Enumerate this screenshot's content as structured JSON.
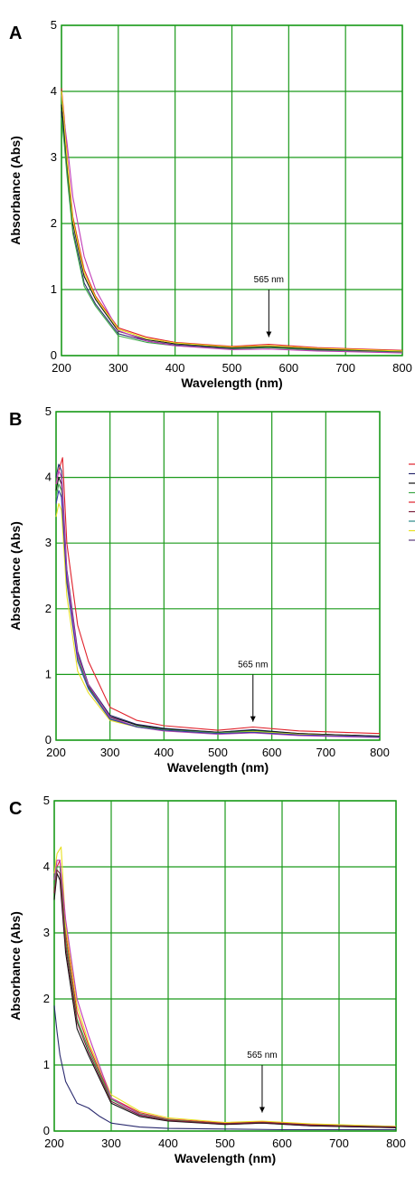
{
  "colors": {
    "grid": "#1a9a1a",
    "red": "#e0202a",
    "navy": "#2a2a6e",
    "black": "#111111",
    "green": "#3aa845",
    "magenta": "#c03ab8",
    "maroon": "#7a1f3a",
    "teal": "#2a8a8a",
    "yellow": "#e8e020",
    "purple": "#5a3a7a",
    "blue": "#3a3aa8"
  },
  "chart_data": [
    {
      "type": "line",
      "panel": "A",
      "xlabel": "Wavelength (nm)",
      "ylabel": "Absorbance (Abs)",
      "xlim": [
        200,
        800
      ],
      "ylim": [
        0,
        5
      ],
      "x_ticks": [
        "200",
        "300",
        "400",
        "500",
        "600",
        "700",
        "800"
      ],
      "y_ticks": [
        "0",
        "1",
        "2",
        "3",
        "4",
        "5"
      ],
      "grid": true,
      "annotation": {
        "text": "565 nm",
        "x": 565
      },
      "series": [
        {
          "color": "red",
          "x": [
            200,
            205,
            210,
            220,
            240,
            260,
            300,
            350,
            400,
            500,
            565,
            650,
            800
          ],
          "y": [
            4.05,
            3.6,
            3.0,
            2.1,
            1.3,
            0.9,
            0.42,
            0.28,
            0.2,
            0.14,
            0.17,
            0.12,
            0.08
          ]
        },
        {
          "color": "navy",
          "x": [
            200,
            205,
            210,
            220,
            240,
            260,
            300,
            350,
            400,
            500,
            565,
            650,
            800
          ],
          "y": [
            3.7,
            3.3,
            2.8,
            1.9,
            1.1,
            0.78,
            0.33,
            0.22,
            0.16,
            0.11,
            0.13,
            0.09,
            0.06
          ]
        },
        {
          "color": "black",
          "x": [
            200,
            205,
            210,
            220,
            240,
            260,
            300,
            350,
            400,
            500,
            565,
            650,
            800
          ],
          "y": [
            3.8,
            3.4,
            2.9,
            2.0,
            1.2,
            0.85,
            0.37,
            0.24,
            0.18,
            0.12,
            0.14,
            0.1,
            0.07
          ]
        },
        {
          "color": "green",
          "x": [
            200,
            205,
            210,
            220,
            240,
            260,
            300,
            350,
            400,
            500,
            565,
            650,
            800
          ],
          "y": [
            3.6,
            3.2,
            2.7,
            1.85,
            1.05,
            0.75,
            0.3,
            0.2,
            0.15,
            0.1,
            0.12,
            0.08,
            0.05
          ]
        },
        {
          "color": "magenta",
          "x": [
            200,
            205,
            210,
            220,
            240,
            260,
            300,
            350,
            400,
            500,
            565,
            650,
            800
          ],
          "y": [
            3.95,
            3.55,
            3.2,
            2.4,
            1.5,
            1.0,
            0.38,
            0.22,
            0.15,
            0.09,
            0.1,
            0.07,
            0.04
          ]
        },
        {
          "color": "yellow",
          "x": [
            200,
            205,
            210,
            220,
            240,
            260,
            300,
            350,
            400,
            500,
            565,
            650,
            800
          ],
          "y": [
            4.0,
            3.5,
            2.95,
            2.05,
            1.25,
            0.88,
            0.4,
            0.26,
            0.19,
            0.13,
            0.15,
            0.11,
            0.07
          ]
        }
      ]
    },
    {
      "type": "line",
      "panel": "B",
      "xlabel": "Wavelength (nm)",
      "ylabel": "Absorbance (Abs)",
      "xlim": [
        200,
        800
      ],
      "ylim": [
        0,
        5
      ],
      "x_ticks": [
        "200",
        "300",
        "400",
        "500",
        "600",
        "700",
        "800"
      ],
      "y_ticks": [
        "0",
        "1",
        "2",
        "3",
        "4",
        "5"
      ],
      "grid": true,
      "annotation": {
        "text": "565 nm",
        "x": 565
      },
      "legend_colors": [
        "red",
        "navy",
        "black",
        "green",
        "red",
        "maroon",
        "teal",
        "yellow",
        "purple"
      ],
      "series": [
        {
          "color": "red",
          "x": [
            200,
            205,
            212,
            220,
            240,
            260,
            300,
            350,
            400,
            500,
            565,
            650,
            800
          ],
          "y": [
            3.9,
            4.1,
            4.3,
            3.0,
            1.75,
            1.2,
            0.5,
            0.3,
            0.22,
            0.15,
            0.2,
            0.14,
            0.1
          ]
        },
        {
          "color": "navy",
          "x": [
            200,
            205,
            210,
            220,
            240,
            260,
            300,
            350,
            400,
            500,
            565,
            650,
            800
          ],
          "y": [
            4.0,
            4.2,
            4.1,
            2.6,
            1.35,
            0.85,
            0.38,
            0.24,
            0.18,
            0.12,
            0.16,
            0.1,
            0.06
          ]
        },
        {
          "color": "black",
          "x": [
            200,
            205,
            210,
            220,
            240,
            260,
            300,
            350,
            400,
            500,
            565,
            650,
            800
          ],
          "y": [
            3.8,
            4.0,
            3.9,
            2.5,
            1.3,
            0.82,
            0.36,
            0.23,
            0.17,
            0.12,
            0.15,
            0.1,
            0.06
          ]
        },
        {
          "color": "green",
          "x": [
            200,
            205,
            210,
            220,
            240,
            260,
            300,
            350,
            400,
            500,
            565,
            650,
            800
          ],
          "y": [
            3.7,
            3.9,
            3.8,
            2.45,
            1.25,
            0.8,
            0.33,
            0.21,
            0.16,
            0.11,
            0.14,
            0.09,
            0.05
          ]
        },
        {
          "color": "magenta",
          "x": [
            200,
            205,
            210,
            220,
            240,
            260,
            300,
            350,
            400,
            500,
            565,
            650,
            800
          ],
          "y": [
            3.9,
            4.1,
            4.0,
            2.55,
            1.3,
            0.84,
            0.35,
            0.2,
            0.14,
            0.09,
            0.11,
            0.07,
            0.04
          ]
        },
        {
          "color": "yellow",
          "x": [
            200,
            205,
            210,
            220,
            240,
            260,
            300,
            350,
            400,
            500,
            565,
            650,
            800
          ],
          "y": [
            3.4,
            3.6,
            3.5,
            2.2,
            1.05,
            0.72,
            0.3,
            0.2,
            0.15,
            0.1,
            0.13,
            0.09,
            0.05
          ]
        },
        {
          "color": "blue",
          "x": [
            200,
            205,
            210,
            220,
            240,
            260,
            300,
            350,
            400,
            500,
            565,
            650,
            800
          ],
          "y": [
            3.6,
            3.8,
            3.7,
            2.4,
            1.2,
            0.78,
            0.32,
            0.2,
            0.15,
            0.1,
            0.12,
            0.08,
            0.05
          ]
        }
      ]
    },
    {
      "type": "line",
      "panel": "C",
      "xlabel": "Wavelength (nm)",
      "ylabel": "Absorbance (Abs)",
      "xlim": [
        200,
        800
      ],
      "ylim": [
        0,
        5
      ],
      "x_ticks": [
        "200",
        "300",
        "400",
        "500",
        "600",
        "700",
        "800"
      ],
      "y_ticks": [
        "0",
        "1",
        "2",
        "3",
        "4",
        "5"
      ],
      "grid": true,
      "annotation": {
        "text": "565 nm",
        "x": 565
      },
      "series": [
        {
          "color": "red",
          "x": [
            200,
            205,
            210,
            220,
            240,
            260,
            300,
            350,
            400,
            500,
            565,
            650,
            800
          ],
          "y": [
            3.6,
            4.0,
            4.1,
            3.0,
            1.8,
            1.3,
            0.5,
            0.28,
            0.18,
            0.12,
            0.14,
            0.1,
            0.07
          ]
        },
        {
          "color": "yellow",
          "x": [
            200,
            205,
            212,
            220,
            240,
            260,
            300,
            350,
            400,
            500,
            565,
            650,
            800
          ],
          "y": [
            3.9,
            4.2,
            4.3,
            3.1,
            1.9,
            1.35,
            0.55,
            0.3,
            0.2,
            0.13,
            0.15,
            0.11,
            0.07
          ]
        },
        {
          "color": "green",
          "x": [
            200,
            205,
            210,
            220,
            240,
            260,
            300,
            350,
            400,
            500,
            565,
            650,
            800
          ],
          "y": [
            3.7,
            4.0,
            4.0,
            2.9,
            1.7,
            1.25,
            0.48,
            0.26,
            0.17,
            0.11,
            0.13,
            0.09,
            0.06
          ]
        },
        {
          "color": "magenta",
          "x": [
            200,
            205,
            210,
            220,
            240,
            260,
            300,
            350,
            400,
            500,
            565,
            650,
            800
          ],
          "y": [
            3.8,
            4.1,
            4.1,
            3.2,
            2.0,
            1.45,
            0.5,
            0.25,
            0.16,
            0.1,
            0.12,
            0.08,
            0.05
          ]
        },
        {
          "color": "black",
          "x": [
            200,
            205,
            210,
            220,
            240,
            260,
            300,
            350,
            400,
            500,
            565,
            650,
            800
          ],
          "y": [
            3.5,
            3.9,
            3.8,
            2.7,
            1.55,
            1.15,
            0.42,
            0.22,
            0.15,
            0.1,
            0.12,
            0.08,
            0.05
          ]
        },
        {
          "color": "maroon",
          "x": [
            200,
            205,
            210,
            220,
            240,
            260,
            300,
            350,
            400,
            500,
            565,
            650,
            800
          ],
          "y": [
            3.6,
            3.95,
            3.9,
            2.8,
            1.65,
            1.2,
            0.45,
            0.24,
            0.16,
            0.11,
            0.13,
            0.09,
            0.06
          ]
        },
        {
          "color": "navy",
          "x": [
            200,
            205,
            210,
            220,
            240,
            260,
            280,
            300,
            350,
            400,
            500,
            600,
            800
          ],
          "y": [
            1.9,
            1.5,
            1.15,
            0.75,
            0.42,
            0.35,
            0.22,
            0.12,
            0.06,
            0.04,
            0.03,
            0.02,
            0.02
          ]
        }
      ]
    }
  ]
}
